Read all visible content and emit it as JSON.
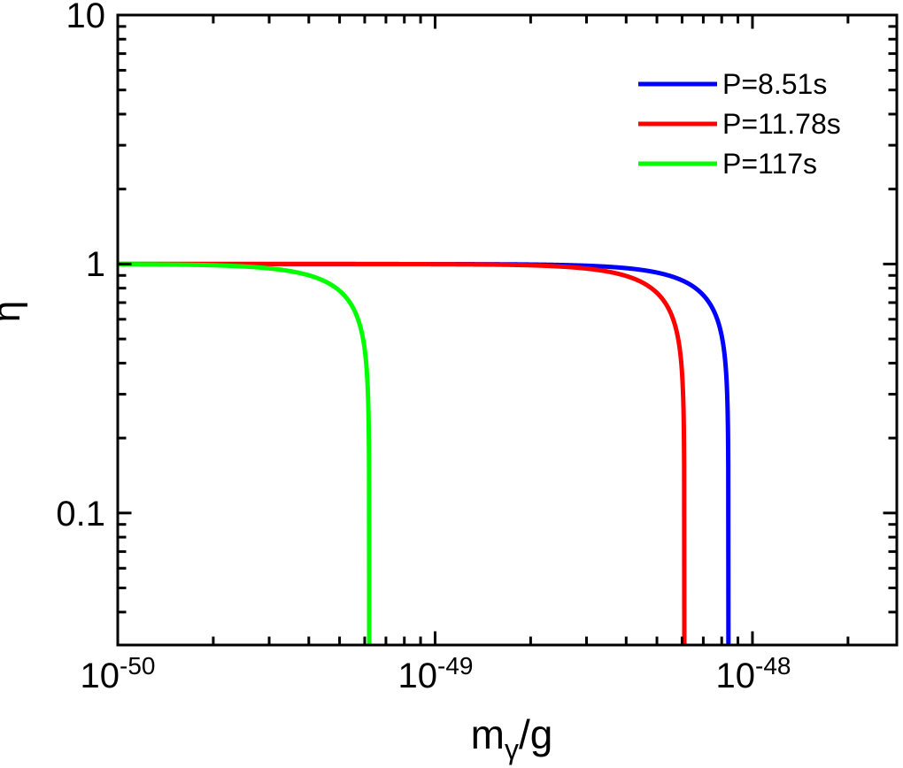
{
  "figure": {
    "background": "#ffffff",
    "frame_color": "#000000"
  },
  "chart_data": {
    "type": "line",
    "title": "",
    "x_scale": "log",
    "y_scale": "log",
    "xlim": [
      1e-50,
      2.85e-48
    ],
    "ylim": [
      0.0295,
      10
    ],
    "grid": false,
    "xlabel": {
      "main": "m",
      "subscript": "γ",
      "suffix": "/g"
    },
    "ylabel": "η",
    "x_major_ticks": [
      {
        "value": 1e-50,
        "base": "10",
        "exp": "-50"
      },
      {
        "value": 1e-49,
        "base": "10",
        "exp": "-49"
      },
      {
        "value": 1e-48,
        "base": "10",
        "exp": "-48"
      }
    ],
    "y_major_ticks": [
      {
        "value": 10,
        "label": "10"
      },
      {
        "value": 1,
        "label": "1"
      },
      {
        "value": 0.1,
        "label": "0.1"
      }
    ],
    "legend_position": "top-right",
    "model": "eta(m) = (1 - (m/m_c)^3)^(1/3), plateau at eta = 1, vertical drop at m = m_c",
    "series": [
      {
        "name": "P=8.51s",
        "color": "#0000ff",
        "critical_mass_g": 8.4e-49,
        "points": [
          [
            1e-50,
            1.0
          ],
          [
            1e-49,
            0.999
          ],
          [
            2e-49,
            0.995
          ],
          [
            4e-49,
            0.963
          ],
          [
            6e-49,
            0.86
          ],
          [
            7e-49,
            0.751
          ],
          [
            8e-49,
            0.516
          ],
          [
            8.3e-49,
            0.327
          ],
          [
            8.4e-49,
            0.03
          ]
        ]
      },
      {
        "name": "P=11.78s",
        "color": "#ff0000",
        "critical_mass_g": 6.1e-49,
        "points": [
          [
            1e-50,
            1.0
          ],
          [
            1e-49,
            0.999
          ],
          [
            2e-49,
            0.988
          ],
          [
            3e-49,
            0.959
          ],
          [
            4e-49,
            0.896
          ],
          [
            5e-49,
            0.766
          ],
          [
            5.8e-49,
            0.52
          ],
          [
            6.05e-49,
            0.29
          ],
          [
            6.1e-49,
            0.03
          ]
        ]
      },
      {
        "name": "P=117s",
        "color": "#00ff00",
        "critical_mass_g": 6.2e-50,
        "points": [
          [
            1e-50,
            0.999
          ],
          [
            2e-50,
            0.989
          ],
          [
            3e-50,
            0.96
          ],
          [
            4e-50,
            0.901
          ],
          [
            5e-50,
            0.78
          ],
          [
            5.9e-50,
            0.517
          ],
          [
            6.15e-50,
            0.29
          ],
          [
            6.2e-50,
            0.03
          ]
        ]
      }
    ]
  }
}
